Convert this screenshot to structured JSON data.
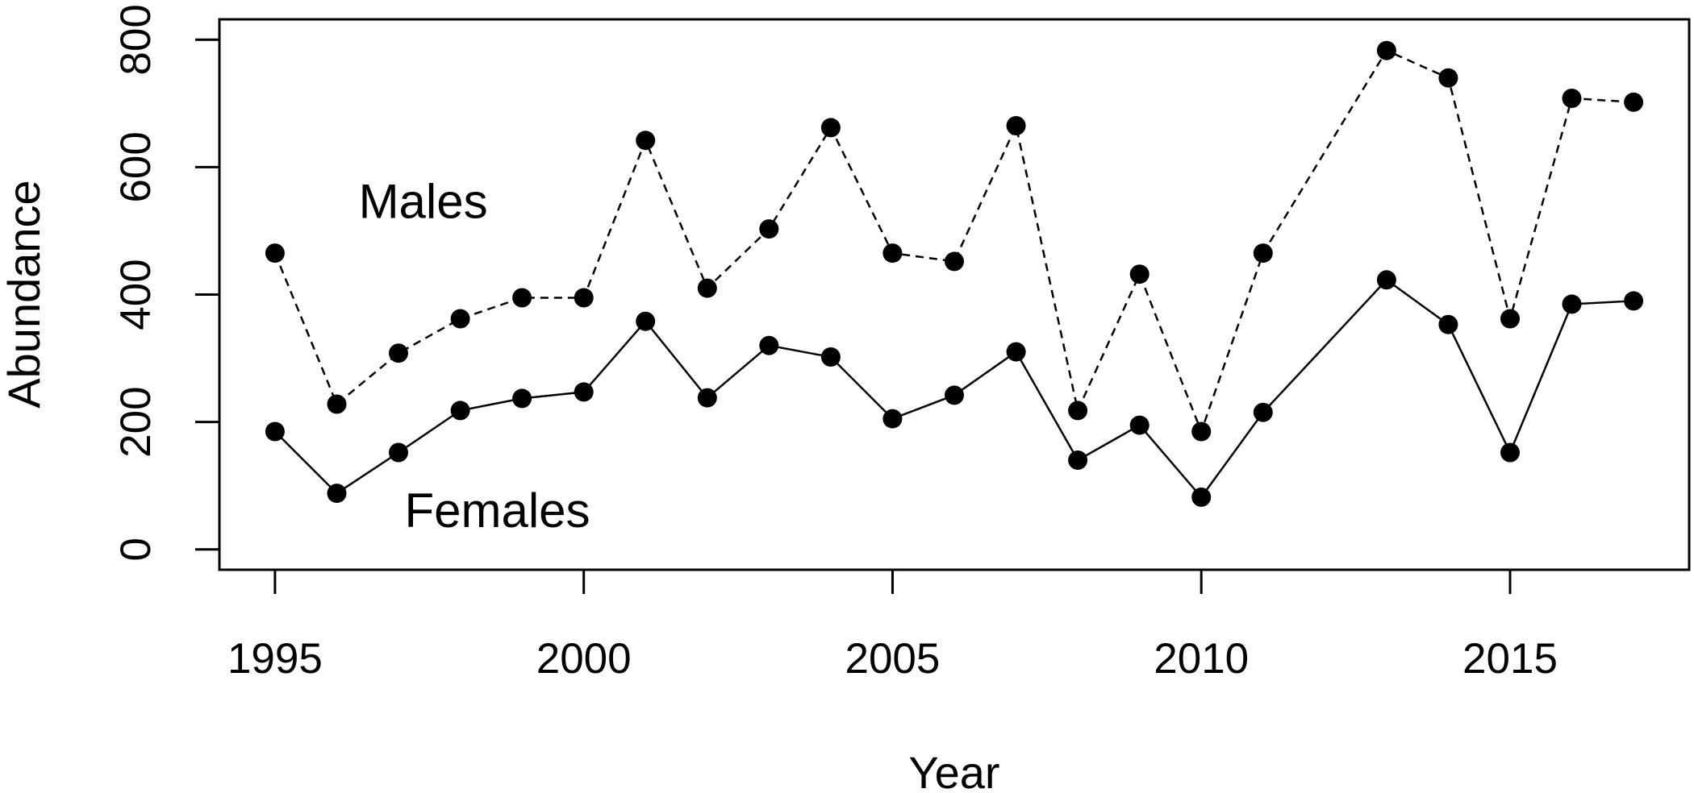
{
  "chart_data": {
    "type": "line",
    "title": "",
    "xlabel": "Year",
    "ylabel": "Abundance",
    "xlim": [
      1994.1,
      2017.9
    ],
    "ylim": [
      -32,
      832
    ],
    "xticks": [
      1995,
      2000,
      2005,
      2010,
      2015
    ],
    "yticks": [
      0,
      200,
      400,
      600,
      800
    ],
    "grid": false,
    "legend": "none",
    "series": [
      {
        "name": "Males",
        "line_style": "dashed",
        "color": "#000000",
        "label_anchor": [
          1997.4,
          540
        ],
        "points": [
          [
            1995,
            465
          ],
          [
            1996,
            228
          ],
          [
            1997,
            308
          ],
          [
            1998,
            362
          ],
          [
            1999,
            395
          ],
          [
            2000,
            395
          ],
          [
            2001,
            642
          ],
          [
            2002,
            410
          ],
          [
            2003,
            503
          ],
          [
            2004,
            662
          ],
          [
            2005,
            465
          ],
          [
            2006,
            452
          ],
          [
            2007,
            665
          ],
          [
            2008,
            218
          ],
          [
            2009,
            432
          ],
          [
            2010,
            185
          ],
          [
            2011,
            465
          ],
          [
            2013,
            783
          ],
          [
            2014,
            740
          ],
          [
            2015,
            362
          ],
          [
            2016,
            708
          ],
          [
            2017,
            702
          ]
        ]
      },
      {
        "name": "Females",
        "line_style": "solid",
        "color": "#000000",
        "label_anchor": [
          1998.6,
          55
        ],
        "points": [
          [
            1995,
            185
          ],
          [
            1996,
            88
          ],
          [
            1997,
            152
          ],
          [
            1998,
            218
          ],
          [
            1999,
            237
          ],
          [
            2000,
            247
          ],
          [
            2001,
            358
          ],
          [
            2002,
            238
          ],
          [
            2003,
            320
          ],
          [
            2004,
            302
          ],
          [
            2005,
            205
          ],
          [
            2006,
            242
          ],
          [
            2007,
            310
          ],
          [
            2008,
            140
          ],
          [
            2009,
            195
          ],
          [
            2010,
            82
          ],
          [
            2011,
            215
          ],
          [
            2013,
            423
          ],
          [
            2014,
            353
          ],
          [
            2015,
            152
          ],
          [
            2016,
            385
          ],
          [
            2017,
            390
          ]
        ]
      }
    ]
  }
}
